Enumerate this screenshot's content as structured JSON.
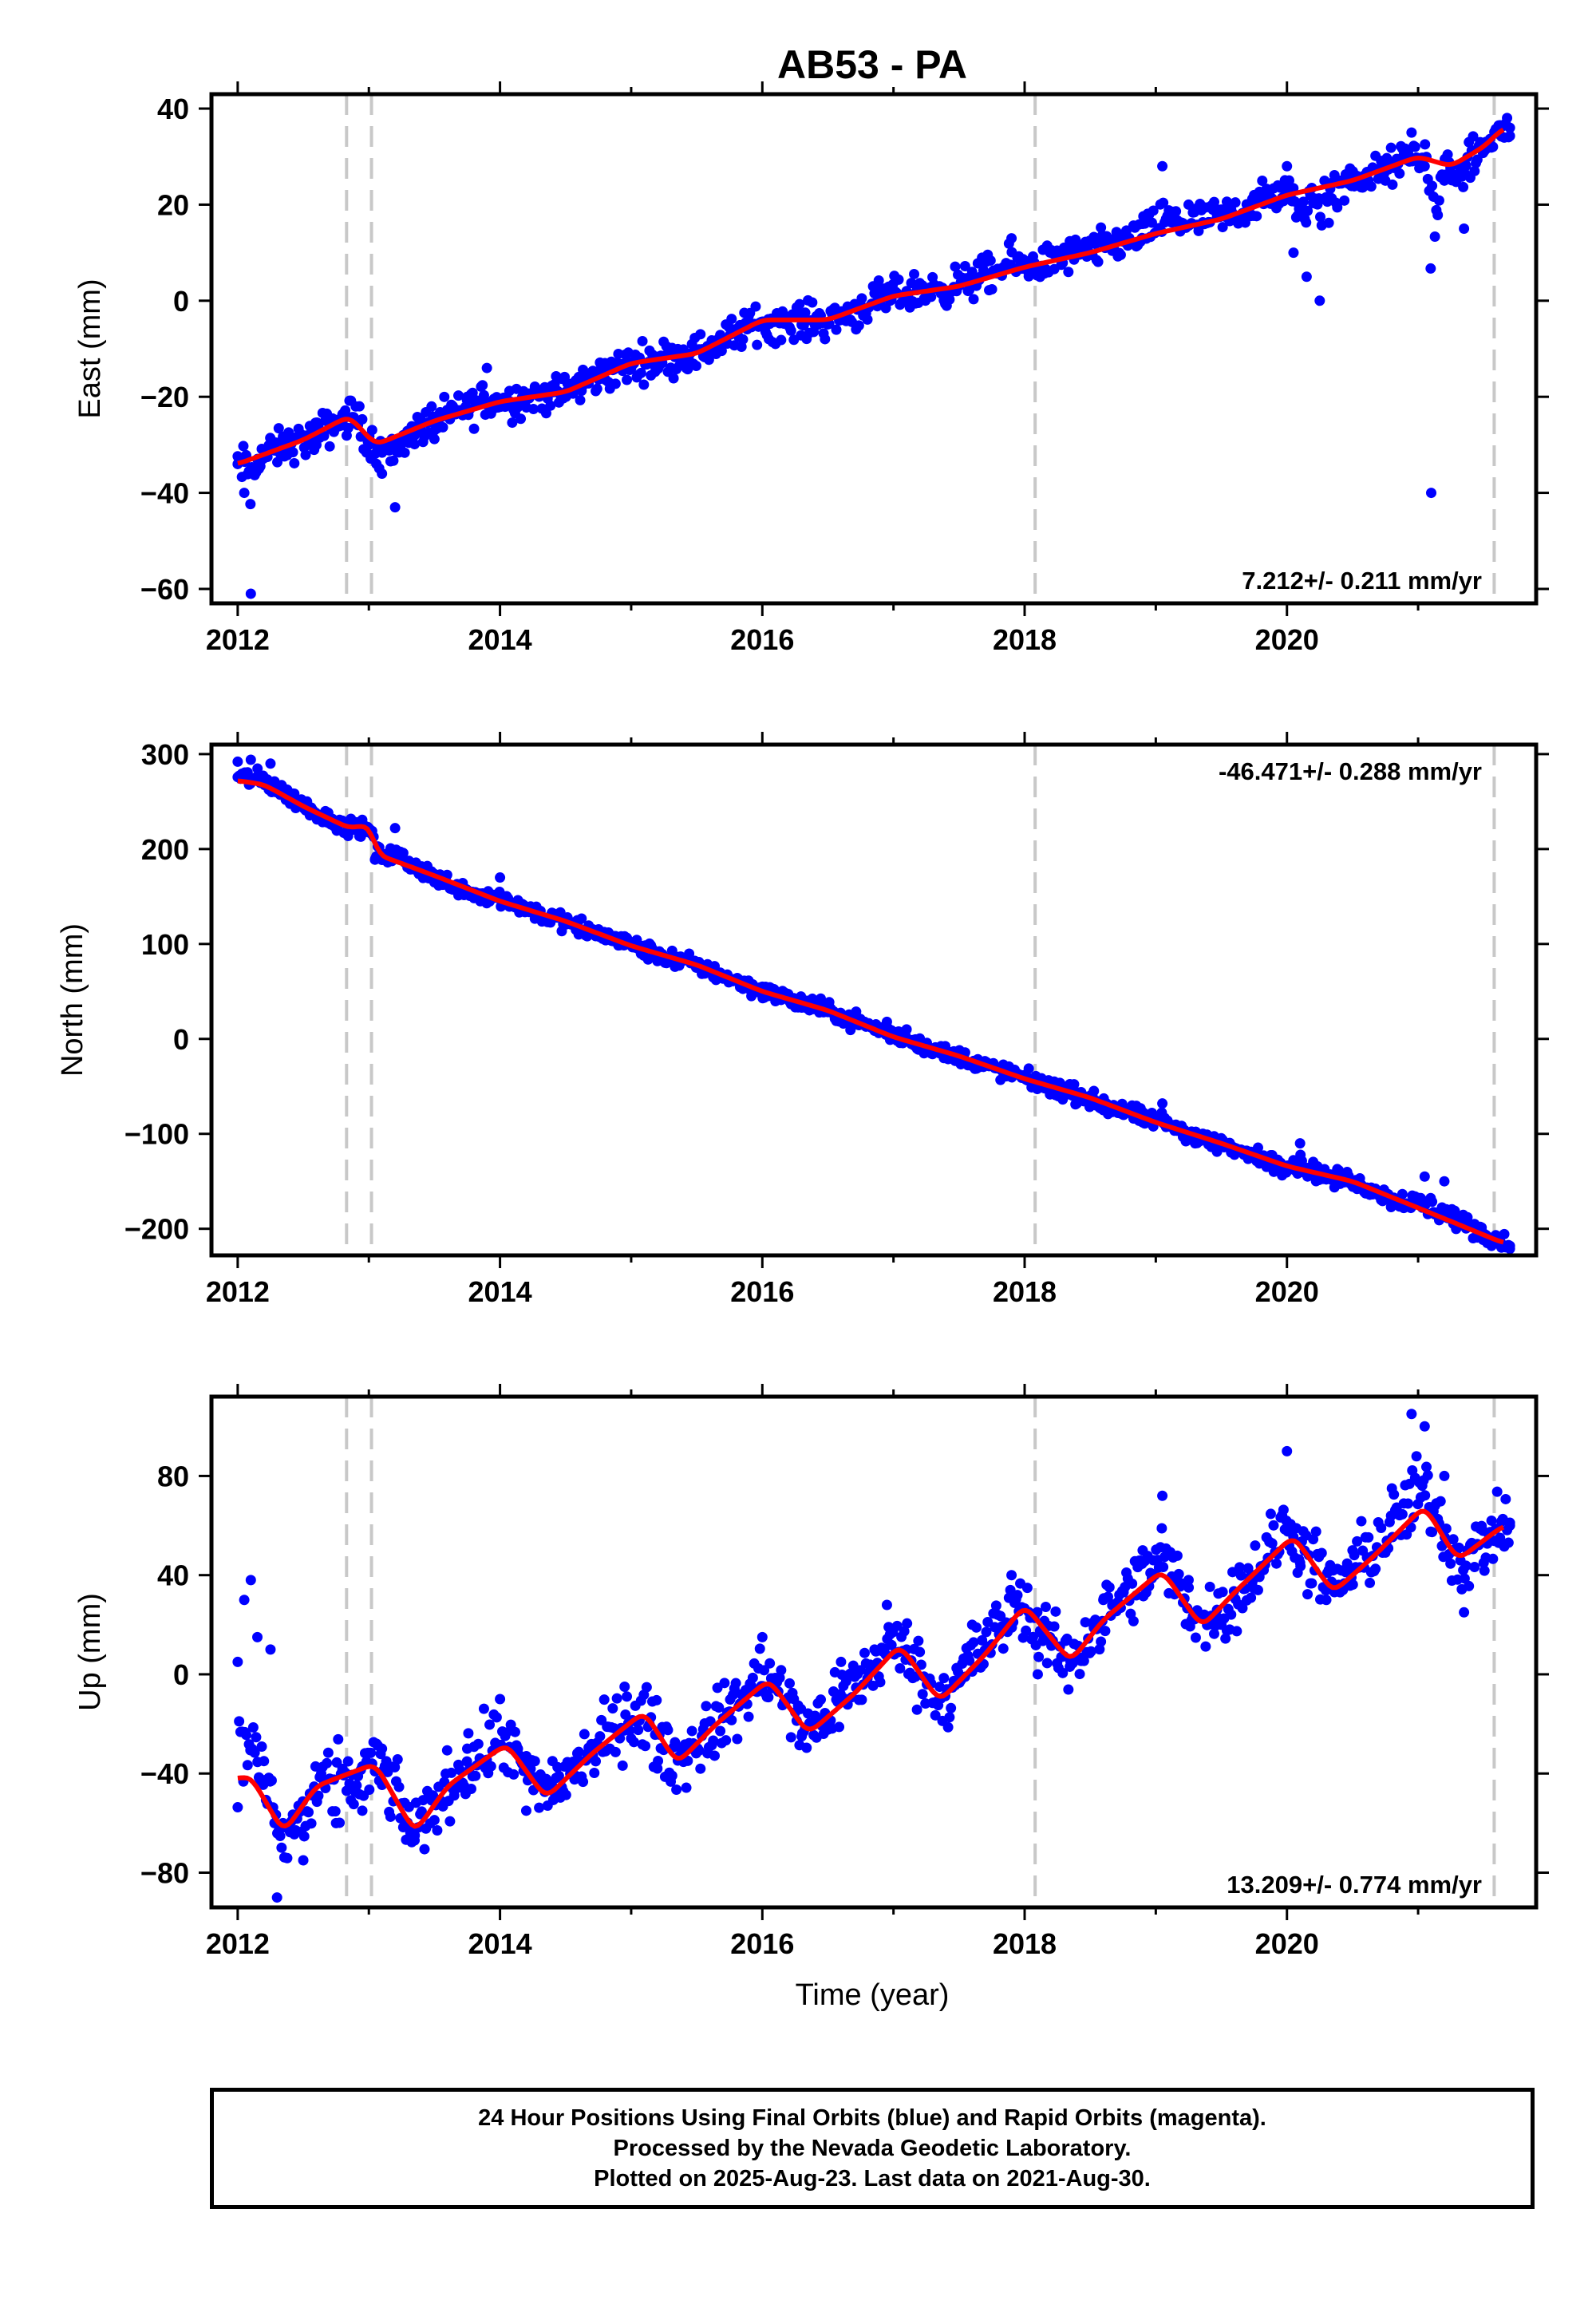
{
  "title": "AB53 - PA",
  "xlabel": "Time (year)",
  "colors": {
    "data": "#0000ff",
    "fit": "#ff0000",
    "gridline": "#c8c8c8",
    "frame": "#000000"
  },
  "footer": {
    "line1": "24 Hour Positions Using Final Orbits (blue) and Rapid Orbits (magenta).",
    "line2": "Processed by the Nevada Geodetic Laboratory.",
    "line3": "Plotted on 2025-Aug-23. Last data on 2021-Aug-30."
  },
  "chart_data": [
    {
      "type": "scatter",
      "component": "east",
      "ylabel": "East (mm)",
      "rate_label": "7.212+/- 0.211 mm/yr",
      "rate_position": "bottom-right",
      "xlim": [
        2011.8,
        2021.9
      ],
      "ylim": [
        -63,
        43
      ],
      "xticks": [
        2012,
        2014,
        2016,
        2018,
        2020
      ],
      "yticks": [
        -60,
        -40,
        -20,
        0,
        20,
        40
      ],
      "event_lines": [
        2012.83,
        2013.02,
        2018.08,
        2021.58
      ],
      "fit": {
        "x": [
          2012.0,
          2012.5,
          2012.85,
          2013.05,
          2013.5,
          2014.0,
          2014.5,
          2015.0,
          2015.5,
          2016.0,
          2016.5,
          2017.0,
          2017.5,
          2018.0,
          2018.5,
          2019.0,
          2019.5,
          2020.0,
          2020.5,
          2021.0,
          2021.25,
          2021.5,
          2021.65
        ],
        "y": [
          -34,
          -29,
          -24,
          -30,
          -25,
          -21,
          -19,
          -13,
          -11,
          -4,
          -4,
          1,
          3,
          7,
          10,
          14,
          17,
          22,
          25,
          30,
          28,
          32,
          36
        ]
      },
      "points": {
        "x": [
          2012.0,
          2012.05,
          2012.1,
          2012.15,
          2012.25,
          2012.4,
          2012.6,
          2012.8,
          2012.9,
          2013.0,
          2013.1,
          2013.2,
          2013.35,
          2013.5,
          2013.75,
          2013.9,
          2014.0,
          2014.2,
          2014.5,
          2014.8,
          2015.0,
          2015.2,
          2015.45,
          2015.7,
          2015.9,
          2016.05,
          2016.3,
          2016.6,
          2016.9,
          2017.1,
          2017.35,
          2017.6,
          2017.9,
          2018.1,
          2018.35,
          2018.6,
          2018.9,
          2019.05,
          2019.25,
          2019.5,
          2019.75,
          2020.0,
          2020.05,
          2020.15,
          2020.25,
          2020.5,
          2020.75,
          2020.95,
          2021.05,
          2021.1,
          2021.2,
          2021.35,
          2021.5,
          2021.7
        ],
        "y": [
          -34,
          -40,
          -61,
          -33,
          -31,
          -29,
          -30,
          -25,
          -22,
          -30,
          -36,
          -43,
          -28,
          -27,
          -20,
          -14,
          -22,
          -20,
          -19,
          -13,
          -14,
          -12,
          -11,
          -9,
          -5,
          -8,
          -5,
          -4,
          0,
          2,
          3,
          6,
          13,
          7,
          11,
          12,
          16,
          28,
          20,
          18,
          22,
          28,
          10,
          5,
          0,
          26,
          25,
          35,
          28,
          -40,
          25,
          15,
          32,
          36
        ]
      }
    },
    {
      "type": "scatter",
      "component": "north",
      "ylabel": "North (mm)",
      "rate_label": "-46.471+/- 0.288 mm/yr",
      "rate_position": "top-right",
      "xlim": [
        2011.8,
        2021.9
      ],
      "ylim": [
        -228,
        310
      ],
      "xticks": [
        2012,
        2014,
        2016,
        2018,
        2020
      ],
      "yticks": [
        -200,
        -100,
        0,
        100,
        200,
        300
      ],
      "event_lines": [
        2012.83,
        2013.02,
        2018.08,
        2021.58
      ],
      "fit": {
        "x": [
          2012.0,
          2012.2,
          2012.5,
          2012.85,
          2013.02,
          2013.05,
          2013.5,
          2014.0,
          2014.5,
          2015.0,
          2015.5,
          2016.0,
          2016.5,
          2017.0,
          2017.5,
          2018.0,
          2018.5,
          2019.0,
          2019.5,
          2020.0,
          2020.5,
          2021.0,
          2021.3,
          2021.65
        ],
        "y": [
          272,
          268,
          245,
          222,
          226,
          195,
          172,
          145,
          124,
          98,
          78,
          50,
          30,
          2,
          -18,
          -42,
          -62,
          -88,
          -110,
          -134,
          -150,
          -178,
          -195,
          -215
        ]
      },
      "points": {
        "x": [
          2012.0,
          2012.1,
          2012.25,
          2012.5,
          2012.85,
          2013.05,
          2013.2,
          2013.5,
          2013.85,
          2014.0,
          2014.3,
          2014.6,
          2014.95,
          2015.2,
          2015.5,
          2015.8,
          2016.0,
          2016.3,
          2016.6,
          2016.95,
          2017.1,
          2017.35,
          2017.65,
          2018.0,
          2018.3,
          2018.6,
          2018.9,
          2019.05,
          2019.3,
          2019.6,
          2019.9,
          2020.1,
          2020.3,
          2020.5,
          2020.8,
          2021.05,
          2021.2,
          2021.5,
          2021.7
        ],
        "y": [
          292,
          294,
          290,
          245,
          222,
          190,
          222,
          165,
          145,
          170,
          130,
          110,
          108,
          82,
          76,
          62,
          55,
          33,
          24,
          18,
          10,
          -15,
          -30,
          -38,
          -60,
          -75,
          -88,
          -68,
          -110,
          -122,
          -140,
          -110,
          -148,
          -150,
          -175,
          -145,
          -150,
          -205,
          -218
        ]
      }
    },
    {
      "type": "scatter",
      "component": "up",
      "ylabel": "Up (mm)",
      "rate_label": "13.209+/- 0.774 mm/yr",
      "rate_position": "bottom-right",
      "xlim": [
        2011.8,
        2021.9
      ],
      "ylim": [
        -94,
        112
      ],
      "xticks": [
        2012,
        2014,
        2016,
        2018,
        2020
      ],
      "yticks": [
        -80,
        -40,
        0,
        40,
        80
      ],
      "event_lines": [
        2012.83,
        2013.02,
        2018.08,
        2021.58
      ],
      "fit": {
        "x": [
          2012.0,
          2012.1,
          2012.35,
          2012.6,
          2012.85,
          2013.05,
          2013.35,
          2013.6,
          2014.05,
          2014.35,
          2014.7,
          2015.1,
          2015.35,
          2015.65,
          2016.05,
          2016.35,
          2016.7,
          2017.05,
          2017.35,
          2017.7,
          2018.0,
          2018.35,
          2018.6,
          2019.05,
          2019.35,
          2019.6,
          2020.05,
          2020.35,
          2020.65,
          2021.05,
          2021.3,
          2021.65
        ],
        "y": [
          -42,
          -41,
          -64,
          -45,
          -40,
          -36,
          -64,
          -45,
          -28,
          -50,
          -32,
          -15,
          -36,
          -20,
          -2,
          -24,
          -8,
          12,
          -11,
          8,
          28,
          5,
          22,
          42,
          19,
          33,
          56,
          33,
          47,
          68,
          46,
          60
        ]
      },
      "points": {
        "x": [
          2012.0,
          2012.05,
          2012.1,
          2012.15,
          2012.2,
          2012.25,
          2012.3,
          2012.5,
          2012.75,
          2012.95,
          2013.1,
          2013.35,
          2013.5,
          2013.75,
          2014.0,
          2014.2,
          2014.4,
          2014.7,
          2014.95,
          2015.2,
          2015.45,
          2015.75,
          2016.0,
          2016.3,
          2016.6,
          2016.95,
          2017.1,
          2017.35,
          2017.6,
          2017.9,
          2018.1,
          2018.35,
          2018.6,
          2018.9,
          2019.05,
          2019.25,
          2019.5,
          2019.75,
          2020.0,
          2020.1,
          2020.3,
          2020.5,
          2020.8,
          2020.95,
          2021.05,
          2021.2,
          2021.35,
          2021.5,
          2021.7
        ],
        "y": [
          5,
          30,
          38,
          15,
          -35,
          10,
          -90,
          -75,
          -60,
          -55,
          -30,
          -65,
          -50,
          -30,
          -10,
          -55,
          -35,
          -30,
          -5,
          -38,
          -30,
          -15,
          15,
          -25,
          5,
          28,
          10,
          -10,
          20,
          40,
          0,
          5,
          30,
          50,
          72,
          38,
          20,
          40,
          90,
          45,
          30,
          50,
          75,
          105,
          100,
          80,
          25,
          45,
          60
        ]
      }
    }
  ]
}
